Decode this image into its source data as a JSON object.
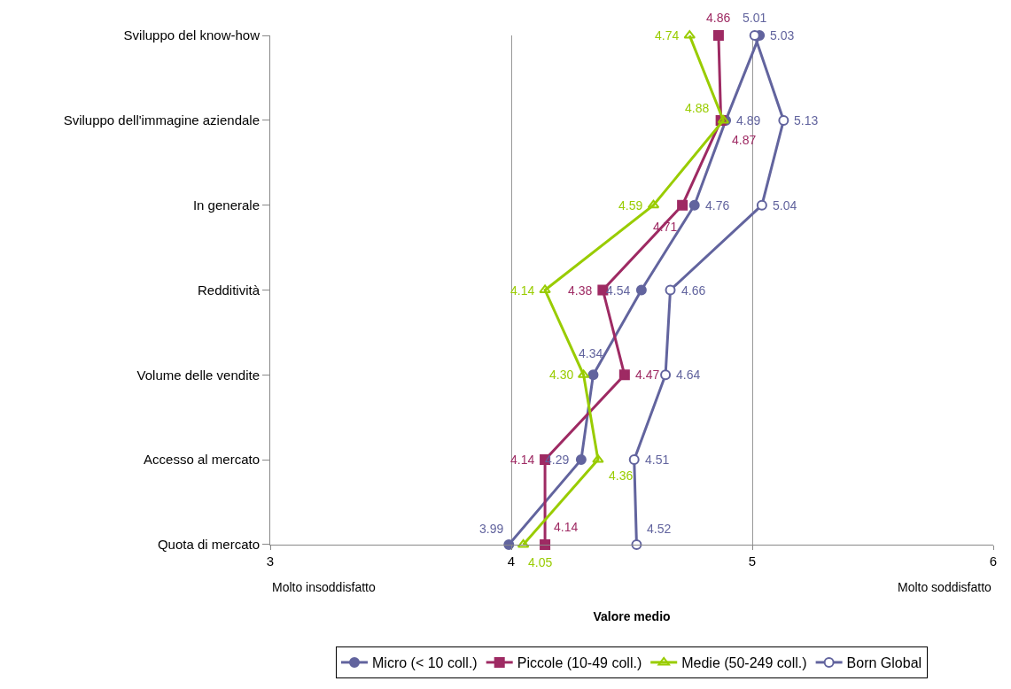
{
  "chart_data": {
    "type": "line",
    "orientation": "horizontal",
    "xlabel": "Valore medio",
    "categories": [
      "Sviluppo del know-how",
      "Sviluppo dell'immagine aziendale",
      "In generale",
      "Redditività",
      "Volume delle vendite",
      "Accesso al mercato",
      "Quota di mercato"
    ],
    "series": [
      {
        "name": "Micro (< 10 coll.)",
        "color": "#62649e",
        "marker": "circle",
        "values": [
          5.03,
          4.89,
          4.76,
          4.54,
          4.34,
          4.29,
          3.99
        ]
      },
      {
        "name": "Piccole (10-49 coll.)",
        "color": "#9e2a63",
        "marker": "square",
        "values": [
          4.86,
          4.87,
          4.71,
          4.38,
          4.47,
          4.14,
          4.14
        ]
      },
      {
        "name": "Medie (50-249 coll.)",
        "color": "#99cc00",
        "marker": "triangle",
        "values": [
          4.74,
          4.88,
          4.59,
          4.14,
          4.3,
          4.36,
          4.05
        ],
        "value_labels": [
          "4.74",
          "4.88",
          "4.59",
          "4.14",
          "4.30",
          "4.36",
          "4.05"
        ]
      },
      {
        "name": "Born Global",
        "color": "#62649e",
        "marker": "circle-open",
        "values": [
          5.01,
          5.13,
          5.04,
          4.66,
          4.64,
          4.51,
          4.52
        ]
      }
    ],
    "xlim": [
      3,
      6
    ],
    "xticks": [
      3,
      4,
      5,
      6
    ],
    "grid": "x",
    "data_labels": true,
    "legend": "bottom",
    "annotations": [
      "Molto insoddisfatto",
      "Molto soddisfatto"
    ]
  }
}
